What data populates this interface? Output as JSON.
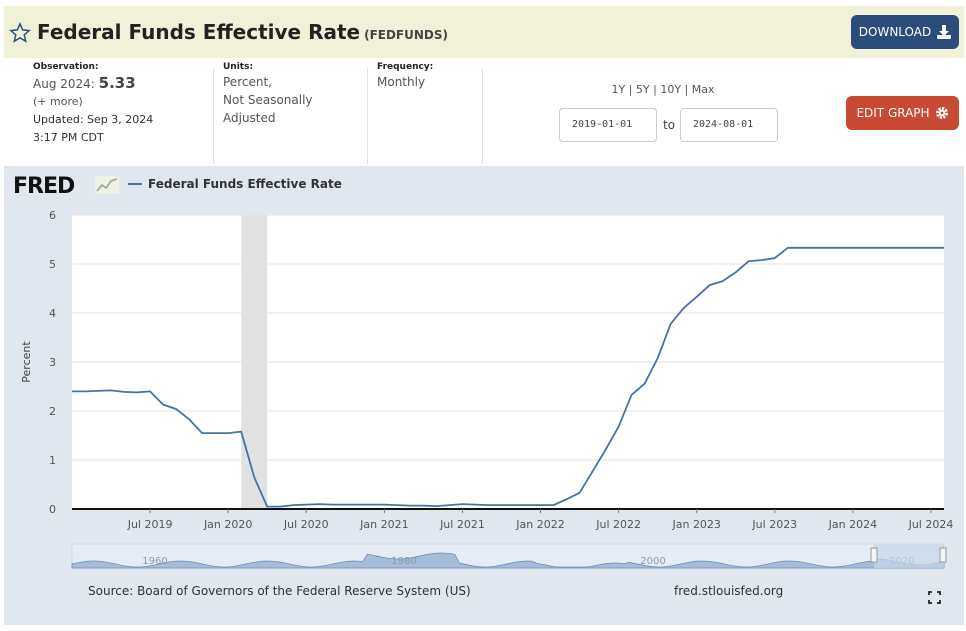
{
  "header": {
    "title": "Federal Funds Effective Rate",
    "code": "(FEDFUNDS)",
    "download_label": "DOWNLOAD"
  },
  "meta": {
    "observation_label": "Observation:",
    "observation_period": "Aug 2024:",
    "observation_value": "5.33",
    "more": "(+ more)",
    "updated_prefix": "Updated:",
    "updated_date": "Sep 3, 2024",
    "updated_time": "3:17 PM CDT",
    "units_label": "Units:",
    "units_line1": "Percent,",
    "units_line2": "Not Seasonally",
    "units_line3": "Adjusted",
    "frequency_label": "Frequency:",
    "frequency_value": "Monthly"
  },
  "controls": {
    "ranges": [
      "1Y",
      "5Y",
      "10Y",
      "Max"
    ],
    "start_date": "2019-01-01",
    "to_label": "to",
    "end_date": "2024-08-01",
    "edit_label": "EDIT GRAPH"
  },
  "logo_text": "FRED",
  "footer": {
    "source": "Source: Board of Governors of the Federal Reserve System (US)",
    "site": "fred.stlouisfed.org"
  },
  "colors": {
    "line": "#4572a7",
    "recession": "#e1e1e1",
    "navigator_fill": "#a7bcd6"
  },
  "chart_data": {
    "type": "line",
    "title": "",
    "xlabel": "",
    "ylabel": "Percent",
    "ylim": [
      0,
      6
    ],
    "yticks": [
      0,
      1,
      2,
      3,
      4,
      5,
      6
    ],
    "xtick_labels": [
      "Jul 2019",
      "Jan 2020",
      "Jul 2020",
      "Jan 2021",
      "Jul 2021",
      "Jan 2022",
      "Jul 2022",
      "Jan 2023",
      "Jul 2023",
      "Jan 2024",
      "Jul 2024"
    ],
    "recession": {
      "start": "2020-02-01",
      "end": "2020-04-01"
    },
    "navigator_labels": [
      "1960",
      "1980",
      "2000",
      "2020"
    ],
    "series": [
      {
        "name": "Federal Funds Effective Rate",
        "x": [
          "2019-01",
          "2019-02",
          "2019-03",
          "2019-04",
          "2019-05",
          "2019-06",
          "2019-07",
          "2019-08",
          "2019-09",
          "2019-10",
          "2019-11",
          "2019-12",
          "2020-01",
          "2020-02",
          "2020-03",
          "2020-04",
          "2020-05",
          "2020-06",
          "2020-07",
          "2020-08",
          "2020-09",
          "2020-10",
          "2020-11",
          "2020-12",
          "2021-01",
          "2021-02",
          "2021-03",
          "2021-04",
          "2021-05",
          "2021-06",
          "2021-07",
          "2021-08",
          "2021-09",
          "2021-10",
          "2021-11",
          "2021-12",
          "2022-01",
          "2022-02",
          "2022-03",
          "2022-04",
          "2022-05",
          "2022-06",
          "2022-07",
          "2022-08",
          "2022-09",
          "2022-10",
          "2022-11",
          "2022-12",
          "2023-01",
          "2023-02",
          "2023-03",
          "2023-04",
          "2023-05",
          "2023-06",
          "2023-07",
          "2023-08",
          "2023-09",
          "2023-10",
          "2023-11",
          "2023-12",
          "2024-01",
          "2024-02",
          "2024-03",
          "2024-04",
          "2024-05",
          "2024-06",
          "2024-07",
          "2024-08"
        ],
        "values": [
          2.4,
          2.4,
          2.41,
          2.42,
          2.39,
          2.38,
          2.4,
          2.13,
          2.04,
          1.83,
          1.55,
          1.55,
          1.55,
          1.58,
          0.65,
          0.05,
          0.05,
          0.08,
          0.09,
          0.1,
          0.09,
          0.09,
          0.09,
          0.09,
          0.09,
          0.08,
          0.07,
          0.07,
          0.06,
          0.08,
          0.1,
          0.09,
          0.08,
          0.08,
          0.08,
          0.08,
          0.08,
          0.08,
          0.2,
          0.33,
          0.77,
          1.21,
          1.68,
          2.33,
          2.56,
          3.08,
          3.78,
          4.1,
          4.33,
          4.57,
          4.65,
          4.83,
          5.06,
          5.08,
          5.12,
          5.33,
          5.33,
          5.33,
          5.33,
          5.33,
          5.33,
          5.33,
          5.33,
          5.33,
          5.33,
          5.33,
          5.33,
          5.33
        ]
      }
    ]
  }
}
